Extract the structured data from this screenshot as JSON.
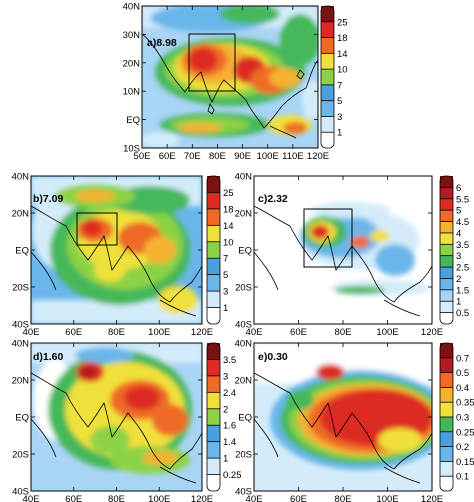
{
  "colors": [
    "#ffffff",
    "#d4ecfa",
    "#a8d4f5",
    "#6ab6ea",
    "#4aa0de",
    "#44b85a",
    "#8cd245",
    "#f0e03a",
    "#f5b130",
    "#ef6a26",
    "#dd2a23",
    "#b11c1c",
    "#7b1212"
  ],
  "panels": [
    {
      "id": "a",
      "label": "a)8.98",
      "lon_ticks": [
        "50E",
        "60E",
        "70E",
        "80E",
        "90E",
        "100E",
        "110E",
        "120E"
      ],
      "lat_ticks": [
        "40N",
        "30N",
        "20N",
        "10N",
        "EQ",
        "10S"
      ],
      "colorbar": [
        "25",
        "18",
        "14",
        "10",
        "7",
        "5",
        "3",
        "1"
      ],
      "has_box": true,
      "bg": "#a8d4f5"
    },
    {
      "id": "b",
      "label": "b)7.09",
      "lon_ticks": [
        "40E",
        "60E",
        "80E",
        "100E",
        "120E"
      ],
      "lat_ticks": [
        "40N",
        "20N",
        "EQ",
        "20S",
        "40S"
      ],
      "colorbar": [
        "25",
        "18",
        "14",
        "10",
        "7",
        "5",
        "3",
        "1"
      ],
      "has_box": true,
      "bg": "#6ab6ea"
    },
    {
      "id": "c",
      "label": "c)2.32",
      "lon_ticks": [
        "40E",
        "60E",
        "80E",
        "100E",
        "120E"
      ],
      "lat_ticks": [
        "40N",
        "20N",
        "EQ",
        "20S",
        "40S"
      ],
      "colorbar": [
        "6",
        "5.5",
        "5",
        "4.5",
        "4",
        "3.5",
        "3",
        "2.5",
        "2",
        "1.5",
        "1",
        "0.5"
      ],
      "has_box": true,
      "bg": "#ffffff"
    },
    {
      "id": "d",
      "label": "d)1.60",
      "lon_ticks": [
        "40E",
        "60E",
        "80E",
        "100E",
        "120E"
      ],
      "lat_ticks": [
        "40N",
        "20N",
        "EQ",
        "20S",
        "40S"
      ],
      "colorbar": [
        "3.5",
        "3",
        "2.4",
        "2",
        "1.6",
        "1.4",
        "1",
        "0.25"
      ],
      "has_box": false,
      "bg": "#a8d4f5"
    },
    {
      "id": "e",
      "label": "e)0.30",
      "lon_ticks": [
        "40E",
        "60E",
        "80E",
        "100E",
        "120E"
      ],
      "lat_ticks": [
        "40N",
        "20N",
        "EQ",
        "20S",
        "40S"
      ],
      "colorbar": [
        "0.7",
        "0.5",
        "0.4",
        "0.35",
        "0.3",
        "0.25",
        "0.2",
        "0.15",
        "0.1"
      ],
      "has_box": false,
      "bg": "#d4ecfa"
    }
  ]
}
